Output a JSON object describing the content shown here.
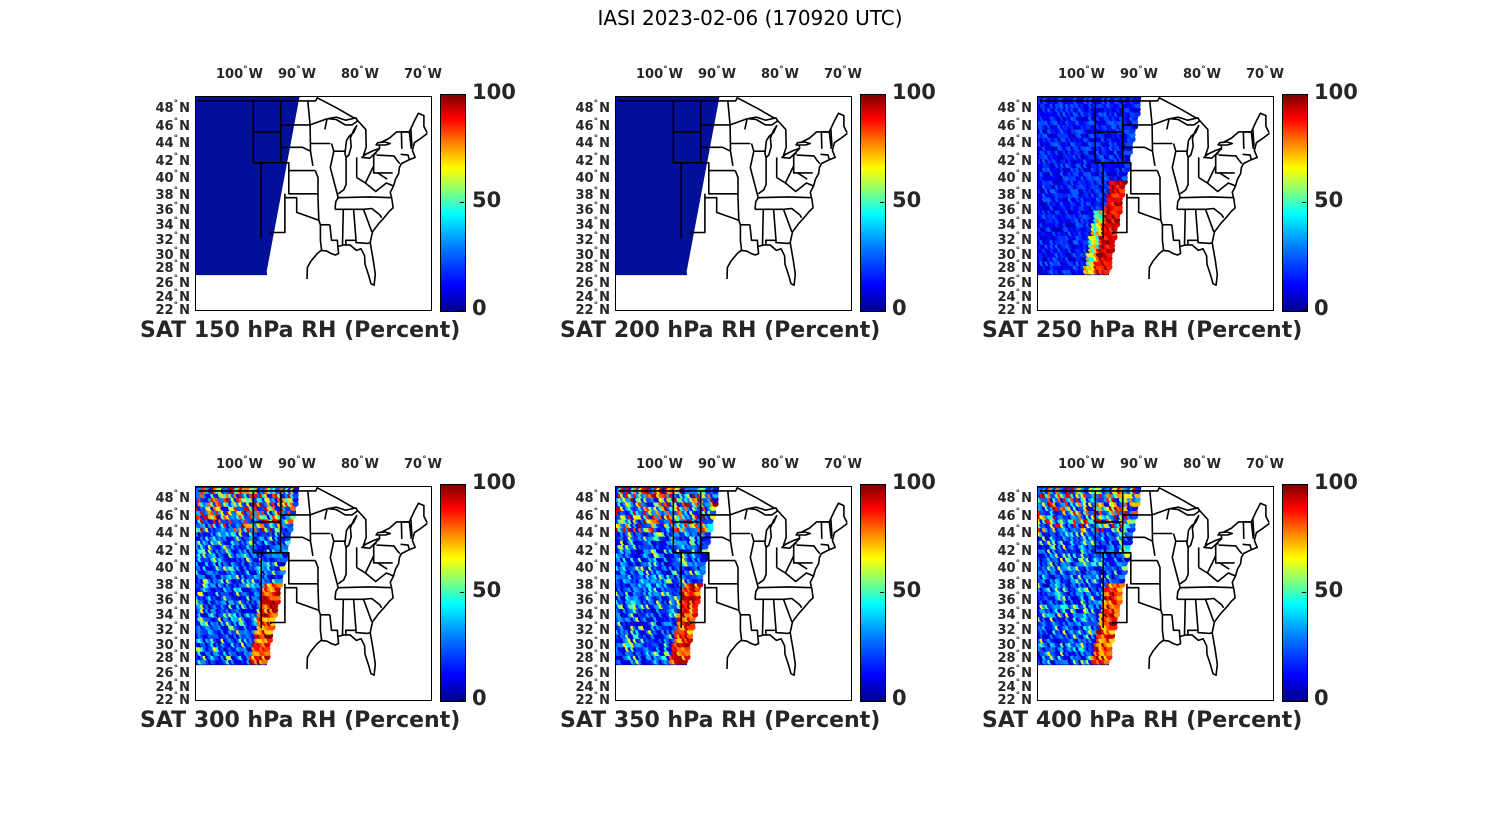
{
  "figure": {
    "title": "IASI 2023-02-06 (170920 UTC)"
  },
  "axes": {
    "lon_ticks": [
      {
        "value": "100",
        "hemi": "W"
      },
      {
        "value": "90",
        "hemi": "W"
      },
      {
        "value": "80",
        "hemi": "W"
      },
      {
        "value": "70",
        "hemi": "W"
      }
    ],
    "lat_ticks": [
      {
        "value": "48",
        "hemi": "N"
      },
      {
        "value": "46",
        "hemi": "N"
      },
      {
        "value": "44",
        "hemi": "N"
      },
      {
        "value": "42",
        "hemi": "N"
      },
      {
        "value": "40",
        "hemi": "N"
      },
      {
        "value": "38",
        "hemi": "N"
      },
      {
        "value": "36",
        "hemi": "N"
      },
      {
        "value": "34",
        "hemi": "N"
      },
      {
        "value": "32",
        "hemi": "N"
      },
      {
        "value": "30",
        "hemi": "N"
      },
      {
        "value": "28",
        "hemi": "N"
      },
      {
        "value": "26",
        "hemi": "N"
      },
      {
        "value": "24",
        "hemi": "N"
      },
      {
        "value": "22",
        "hemi": "N"
      }
    ],
    "colorbar_ticks": [
      "100",
      "50",
      "0"
    ],
    "colorbar_range": [
      0,
      100
    ],
    "colormap": "jet"
  },
  "panels": [
    {
      "title": "SAT 150 hPa RH (Percent)",
      "level": "150",
      "swath_fill": "uniform-low"
    },
    {
      "title": "SAT 200 hPa RH (Percent)",
      "level": "200",
      "swath_fill": "uniform-low"
    },
    {
      "title": "SAT 250 hPa RH (Percent)",
      "level": "250",
      "swath_fill": "low-with-high-band-south"
    },
    {
      "title": "SAT 300 hPa RH (Percent)",
      "level": "300",
      "swath_fill": "mixed"
    },
    {
      "title": "SAT 350 hPa RH (Percent)",
      "level": "350",
      "swath_fill": "mixed"
    },
    {
      "title": "SAT 400 hPa RH (Percent)",
      "level": "400",
      "swath_fill": "mixed"
    }
  ],
  "colors": {
    "swath_low": "#00109a",
    "swath_mid": "#0a3cd8",
    "swath_moist": "#b01010",
    "border": "#000000"
  }
}
